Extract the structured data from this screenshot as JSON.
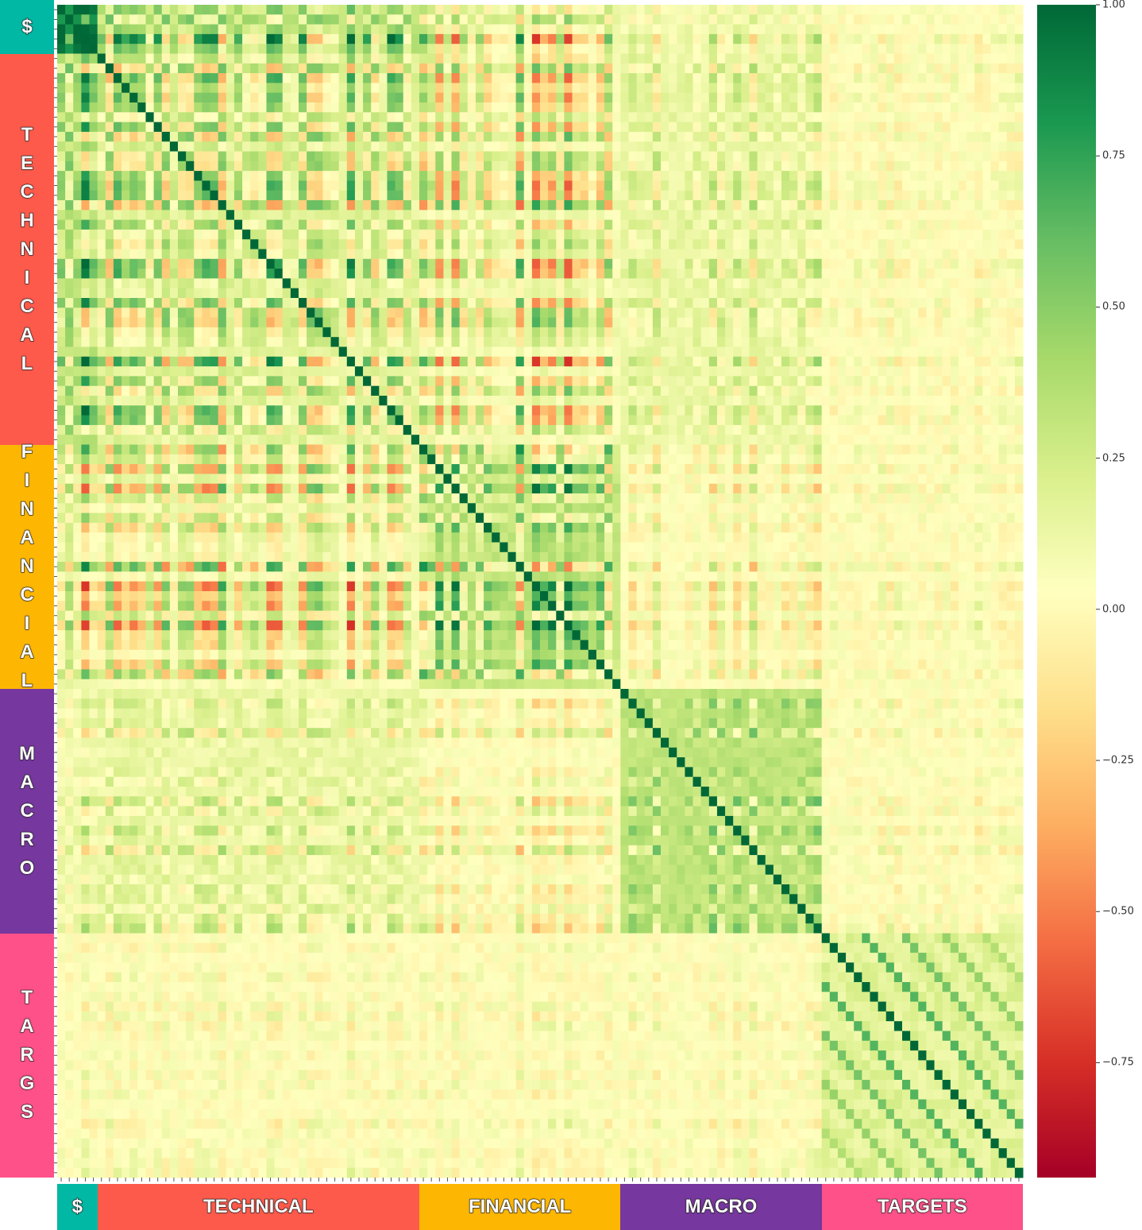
{
  "chart_data": {
    "type": "heatmap",
    "title": "",
    "matrix_size": 120,
    "groups": [
      {
        "key": "dollar",
        "row_label": "$",
        "col_label": "$",
        "size": 5,
        "color": "#00b8a3"
      },
      {
        "key": "technical",
        "row_label": "TECHNICAL",
        "col_label": "TECHNICAL",
        "size": 40,
        "color": "#fe5a4b"
      },
      {
        "key": "financial",
        "row_label": "FINANCIAL",
        "col_label": "FINANCIAL",
        "size": 25,
        "color": "#fdb703"
      },
      {
        "key": "macro",
        "row_label": "MACRO",
        "col_label": "MACRO",
        "size": 25,
        "color": "#76379e"
      },
      {
        "key": "targets",
        "row_label": "TARGS",
        "col_label": "TARGETS",
        "size": 25,
        "color": "#fe5189"
      }
    ],
    "block_mean_correlation": [
      [
        0.9,
        0.3,
        0.1,
        0.05,
        0.0
      ],
      [
        0.3,
        0.15,
        0.05,
        0.1,
        0.0
      ],
      [
        0.1,
        0.05,
        0.25,
        0.0,
        0.0
      ],
      [
        0.05,
        0.1,
        0.0,
        0.3,
        0.0
      ],
      [
        0.0,
        0.0,
        0.0,
        0.0,
        0.5
      ]
    ],
    "diagonal": 1.0,
    "colorbar": {
      "colormap": "RdYlGn",
      "vmin": -0.94,
      "vmax": 1.0,
      "ticks": [
        1.0,
        0.75,
        0.5,
        0.25,
        0.0,
        -0.25,
        -0.5,
        -0.75
      ],
      "tick_labels": [
        "1.00",
        "0.75",
        "0.50",
        "0.25",
        "0.00",
        "−0.25",
        "−0.50",
        "−0.75"
      ]
    }
  }
}
